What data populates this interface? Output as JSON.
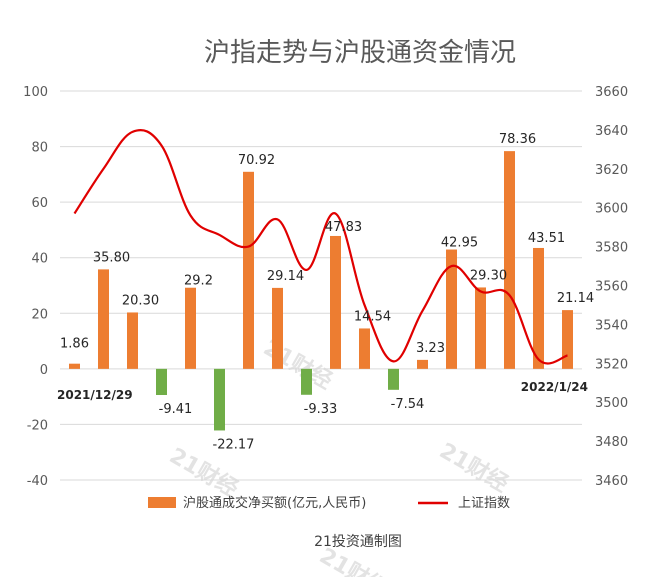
{
  "chart_data": {
    "type": "bar",
    "title": "沪指走势与沪股通资金情况",
    "source": "21投资通制图",
    "categories": [
      "2021/12/29",
      "",
      "",
      "",
      "",
      "",
      "",
      "",
      "",
      "",
      "",
      "",
      "",
      "",
      "",
      "",
      "",
      "2022/1/24"
    ],
    "x_labels_shown": [
      "2021/12/29",
      "2022/1/24"
    ],
    "left_axis": {
      "ylim": [
        -40,
        100
      ],
      "ticks": [
        "-40",
        "-20",
        "0",
        "20",
        "40",
        "60",
        "80",
        "100"
      ]
    },
    "right_axis": {
      "ylim": [
        3460,
        3660
      ],
      "ticks": [
        "3460",
        "3480",
        "3500",
        "3520",
        "3540",
        "3560",
        "3580",
        "3600",
        "3620",
        "3640",
        "3660"
      ]
    },
    "series": [
      {
        "name": "沪股通成交净买额(亿元,人民币)",
        "type": "bar",
        "axis": "left",
        "color_pos": "#ED7D31",
        "color_neg": "#70AD47",
        "values": [
          1.86,
          35.8,
          20.3,
          -9.41,
          29.2,
          -22.17,
          70.92,
          29.14,
          -9.33,
          47.83,
          14.54,
          -7.54,
          3.23,
          42.95,
          29.3,
          78.36,
          43.51,
          21.14
        ],
        "labels": [
          "1.86",
          "35.80",
          "20.30",
          "-9.41",
          "29.2",
          "-22.17",
          "70.92",
          "29.14",
          "-9.33",
          "47.83",
          "14.54",
          "-7.54",
          "3.23",
          "42.95",
          "29.30",
          "78.36",
          "43.51",
          "21.14"
        ]
      },
      {
        "name": "上证指数",
        "type": "line",
        "axis": "right",
        "color": "#E00000",
        "values": [
          3597,
          3620,
          3639,
          3632,
          3596,
          3586,
          3580,
          3594,
          3568,
          3597,
          3550,
          3521,
          3547,
          3570,
          3557,
          3555,
          3522,
          3524
        ]
      }
    ],
    "grid": true,
    "legend": "bottom"
  },
  "watermarks": [
    "21财经",
    "21财经",
    "21财经",
    "21财经"
  ]
}
